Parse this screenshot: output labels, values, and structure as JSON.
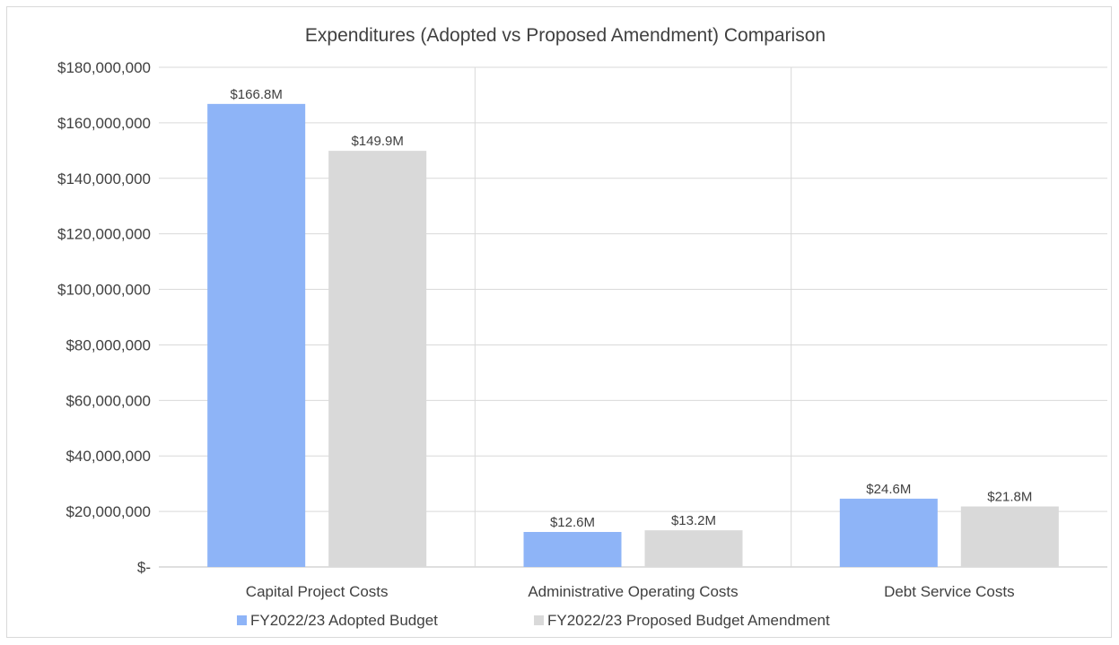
{
  "chart_data": {
    "type": "bar",
    "title": "Expenditures  (Adopted vs Proposed Amendment) Comparison",
    "xlabel": "",
    "ylabel": "",
    "categories": [
      "Capital Project Costs",
      "Administrative Operating Costs",
      "Debt Service Costs"
    ],
    "series": [
      {
        "name": "FY2022/23 Adopted Budget",
        "color": "#8eb4f7",
        "values": [
          166800000,
          12600000,
          24600000
        ],
        "data_labels": [
          "$166.8M",
          "$12.6M",
          "$24.6M"
        ]
      },
      {
        "name": "FY2022/23 Proposed Budget Amendment",
        "color": "#d9d9d9",
        "values": [
          149900000,
          13200000,
          21800000
        ],
        "data_labels": [
          "$149.9M",
          "$13.2M",
          "$21.8M"
        ]
      }
    ],
    "ylim": [
      0,
      180000000
    ],
    "yticks": [
      0,
      20000000,
      40000000,
      60000000,
      80000000,
      100000000,
      120000000,
      140000000,
      160000000,
      180000000
    ],
    "ytick_labels": [
      "$-",
      "$20,000,000",
      "$40,000,000",
      "$60,000,000",
      "$80,000,000",
      "$100,000,000",
      "$120,000,000",
      "$140,000,000",
      "$160,000,000",
      "$180,000,000"
    ],
    "grid": true,
    "legend_position": "bottom"
  }
}
